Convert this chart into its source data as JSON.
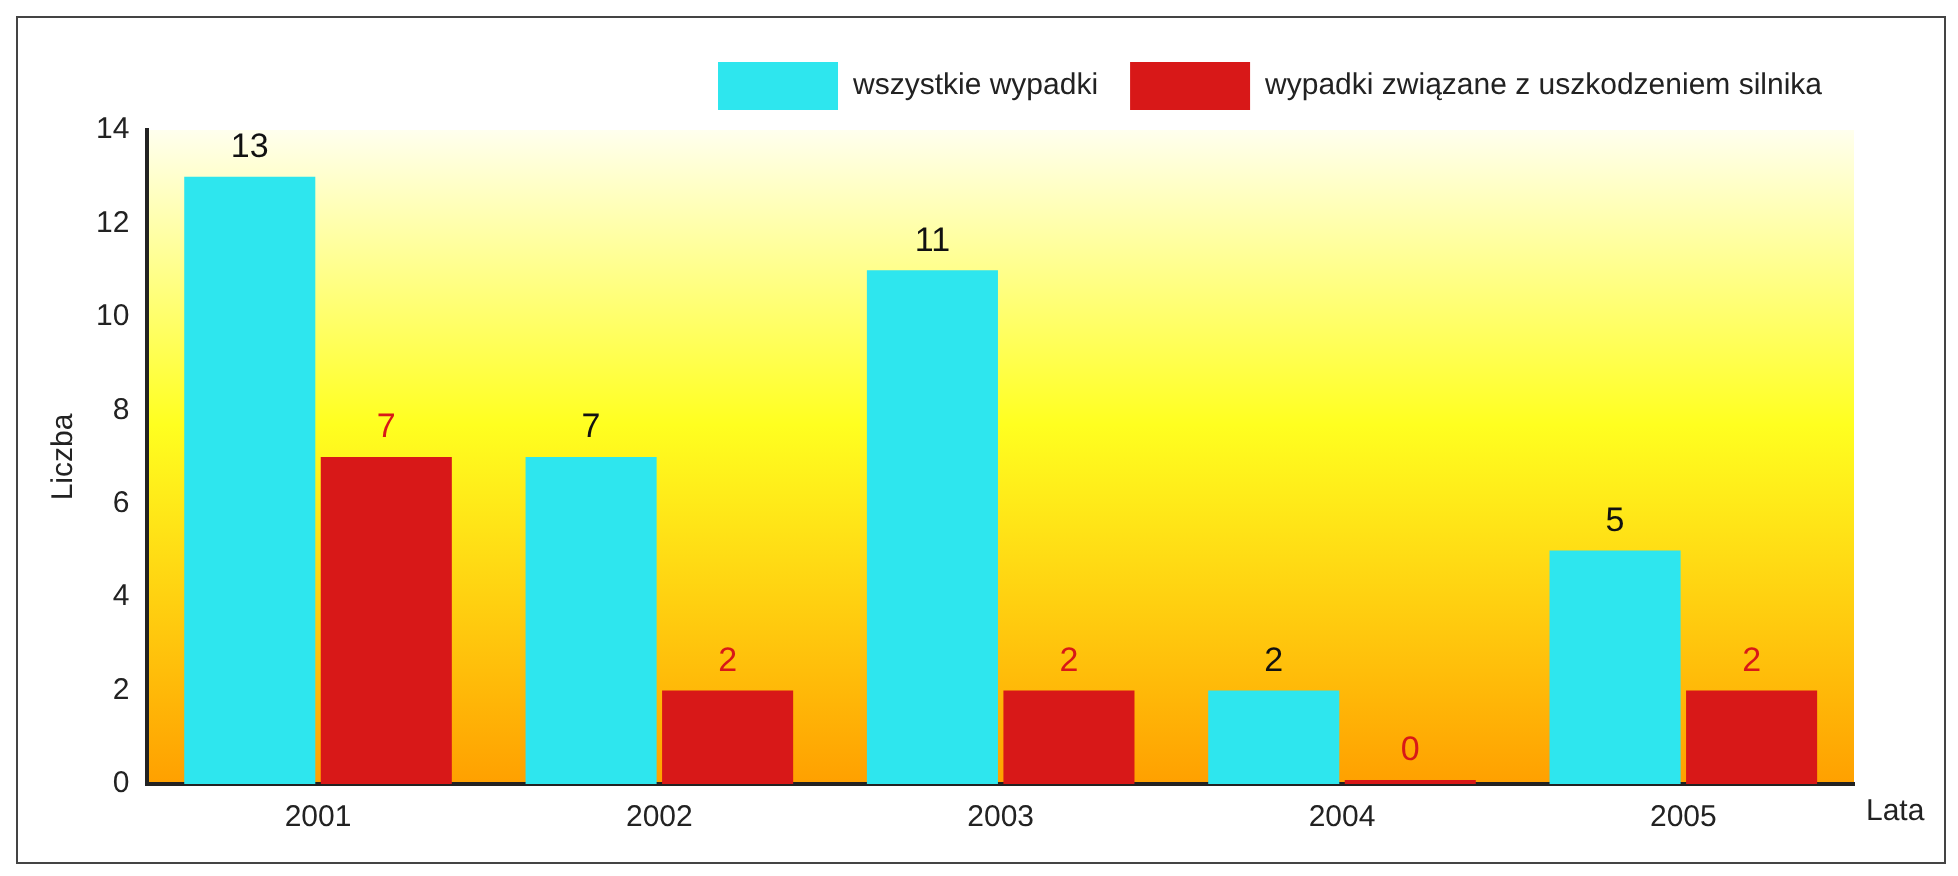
{
  "chart_data": {
    "type": "bar",
    "xlabel": "Lata",
    "ylabel": "Liczba",
    "categories": [
      "2001",
      "2002",
      "2003",
      "2004",
      "2005"
    ],
    "series": [
      {
        "name": "wszystkie wypadki",
        "color": "#2ee6ee",
        "values": [
          13,
          7,
          11,
          2,
          5
        ]
      },
      {
        "name": "wypadki związane z uszkodzeniem silnika",
        "color": "#d81818",
        "values": [
          7,
          2,
          2,
          0,
          2
        ]
      }
    ],
    "ylim": [
      0,
      14
    ],
    "yticks": [
      0,
      2,
      4,
      6,
      8,
      10,
      12,
      14
    ],
    "grid": false,
    "legend": "top right",
    "data_labels": true
  }
}
